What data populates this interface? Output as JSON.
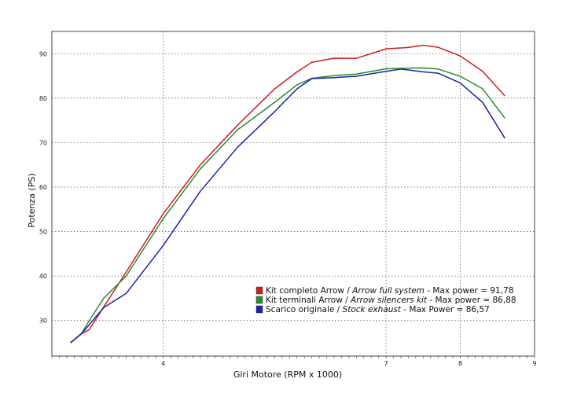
{
  "chart_data": {
    "type": "line",
    "title": "",
    "xlabel": "Giri Motore (RPM x 1000)",
    "ylabel": "Potenza (PS)",
    "xlim": [
      2.5,
      9.0
    ],
    "ylim": [
      22,
      95
    ],
    "x_ticks": [
      4,
      7,
      8,
      9
    ],
    "y_ticks": [
      30,
      40,
      50,
      60,
      70,
      80,
      90
    ],
    "grid": true,
    "legend_position": "bottom-right",
    "series": [
      {
        "name": "Kit completo Arrow",
        "name_en": "Arrow full system",
        "max_label": "Max power = 91,78",
        "color": "#cc1f1f",
        "x": [
          2.75,
          2.9,
          3.0,
          3.2,
          3.5,
          4.0,
          4.5,
          5.0,
          5.5,
          5.8,
          6.0,
          6.3,
          6.6,
          7.0,
          7.3,
          7.5,
          7.7,
          8.0,
          8.3,
          8.6
        ],
        "y": [
          25,
          27,
          28,
          33,
          41,
          54,
          65,
          74,
          82,
          86,
          88,
          89,
          89,
          91,
          91.5,
          91.8,
          91.5,
          89.5,
          86,
          80.5
        ]
      },
      {
        "name": "Kit terminali Arrow",
        "name_en": "Arrow silencers kit",
        "max_label": "Max power = 86,88",
        "color": "#2d8a2d",
        "x": [
          2.75,
          2.9,
          3.0,
          3.2,
          3.5,
          4.0,
          4.5,
          5.0,
          5.5,
          5.8,
          6.0,
          6.3,
          6.6,
          7.0,
          7.3,
          7.5,
          7.7,
          8.0,
          8.3,
          8.6
        ],
        "y": [
          25,
          27,
          30,
          35,
          40,
          53,
          64,
          73,
          79,
          83,
          84.5,
          85,
          85.5,
          86.5,
          86.8,
          86.8,
          86.5,
          85,
          82,
          75.5
        ]
      },
      {
        "name": "Scarico originale",
        "name_en": "Stock exhaust",
        "max_label": "Max Power = 86,57",
        "color": "#1a23a8",
        "x": [
          2.75,
          2.9,
          3.0,
          3.2,
          3.5,
          4.0,
          4.5,
          5.0,
          5.5,
          5.8,
          6.0,
          6.3,
          6.6,
          7.0,
          7.2,
          7.5,
          7.7,
          8.0,
          8.3,
          8.6
        ],
        "y": [
          25,
          27,
          29,
          33,
          36,
          47,
          59,
          69,
          77,
          82,
          84.5,
          84.5,
          85,
          86,
          86.5,
          86,
          85.5,
          83.5,
          79,
          71
        ]
      }
    ],
    "legend_sep": " / ",
    "legend_dash": " - "
  }
}
